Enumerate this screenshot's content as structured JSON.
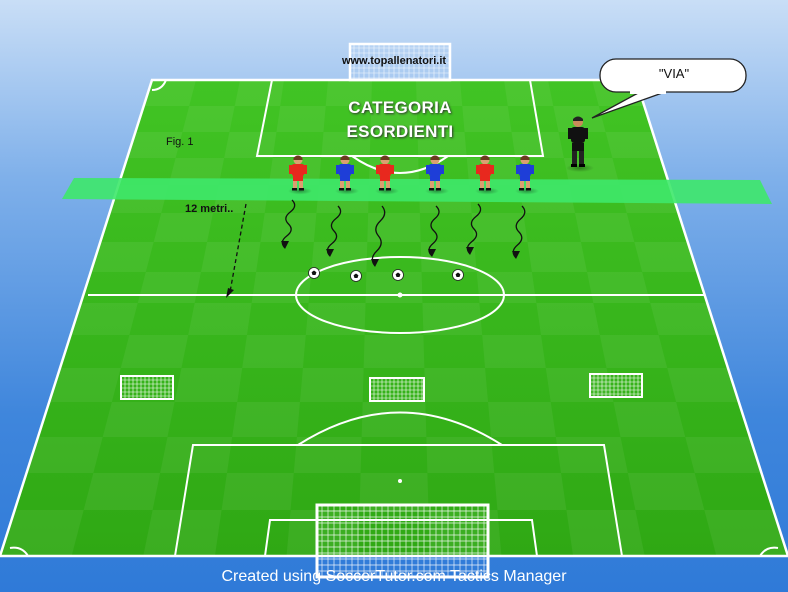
{
  "watermark_url": "www.topallenatori.it",
  "title_line1": "CATEGORIA",
  "title_line2": "ESORDIENTI",
  "figure_label": "Fig. 1",
  "distance_label": "12 metri..",
  "speech_bubble": "\"VIA\"",
  "footer": "Created using SoccerTutor.com Tactics Manager",
  "colors": {
    "pitch_light": "#3cbd1e",
    "pitch_dark": "#34b018",
    "start_band": "#34e25a",
    "team_red": "#e8281e",
    "team_blue": "#1e3ed8",
    "referee": "#111111",
    "lines": "#ffffff"
  },
  "players": [
    {
      "team": "red",
      "name": "player-red-1"
    },
    {
      "team": "blue",
      "name": "player-blue-1"
    },
    {
      "team": "red",
      "name": "player-red-2"
    },
    {
      "team": "blue",
      "name": "player-blue-2"
    },
    {
      "team": "red",
      "name": "player-red-3"
    },
    {
      "team": "blue",
      "name": "player-blue-3"
    }
  ],
  "ball_count": 4,
  "mini_goal_count": 3
}
